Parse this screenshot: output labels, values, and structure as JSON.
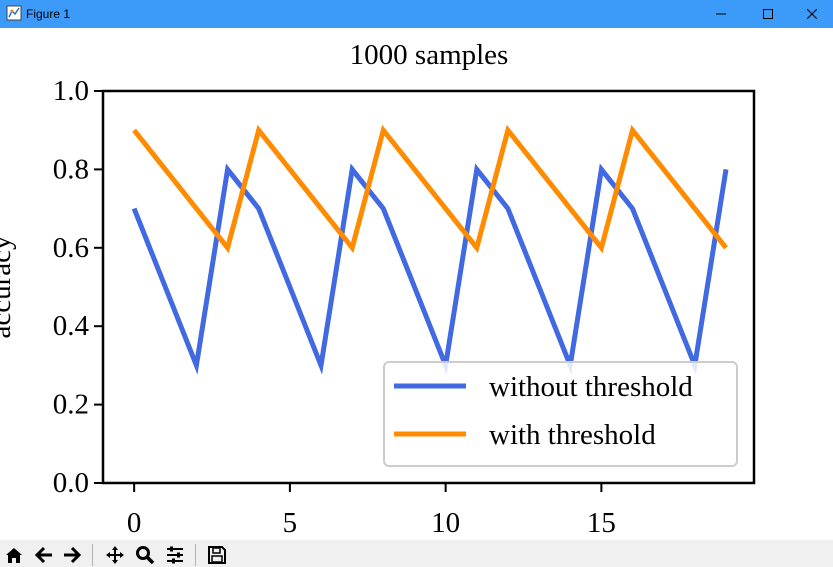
{
  "window": {
    "title": "Figure 1",
    "icons": [
      "app-icon",
      "minimize-icon",
      "maximize-icon",
      "close-icon"
    ]
  },
  "colors": {
    "titlebar": "#3c9bf9",
    "without_threshold": "#4169e1",
    "with_threshold": "#ff8c00"
  },
  "chart_data": {
    "type": "line",
    "title": "1000 samples",
    "xlabel": "",
    "ylabel": "accuracy",
    "xlim": [
      -1,
      19.9
    ],
    "ylim": [
      0,
      1
    ],
    "xticks": [
      0,
      5,
      10,
      15
    ],
    "yticks": [
      0.0,
      0.2,
      0.4,
      0.6,
      0.8,
      1.0
    ],
    "xtick_labels": [
      "0",
      "5",
      "10",
      "15"
    ],
    "ytick_labels": [
      "0.0",
      "0.2",
      "0.4",
      "0.6",
      "0.8",
      "1.0"
    ],
    "grid": false,
    "legend_position": "lower right",
    "x": [
      0,
      1,
      2,
      3,
      4,
      5,
      6,
      7,
      8,
      9,
      10,
      11,
      12,
      13,
      14,
      15,
      16,
      17,
      18,
      19
    ],
    "series": [
      {
        "name": "without threshold",
        "color": "#4169e1",
        "values": [
          0.7,
          0.5,
          0.3,
          0.8,
          0.7,
          0.5,
          0.3,
          0.8,
          0.7,
          0.5,
          0.3,
          0.8,
          0.7,
          0.5,
          0.3,
          0.8,
          0.7,
          0.5,
          0.3,
          0.8
        ]
      },
      {
        "name": "with threshold",
        "color": "#ff8c00",
        "values": [
          0.9,
          0.8,
          0.7,
          0.6,
          0.9,
          0.8,
          0.7,
          0.6,
          0.9,
          0.8,
          0.7,
          0.6,
          0.9,
          0.8,
          0.7,
          0.6,
          0.9,
          0.8,
          0.7,
          0.6
        ]
      }
    ]
  },
  "toolbar": {
    "icons": [
      "home-icon",
      "back-arrow-icon",
      "forward-arrow-icon",
      "pan-icon",
      "zoom-icon",
      "configure-subplots-icon",
      "save-icon"
    ]
  }
}
